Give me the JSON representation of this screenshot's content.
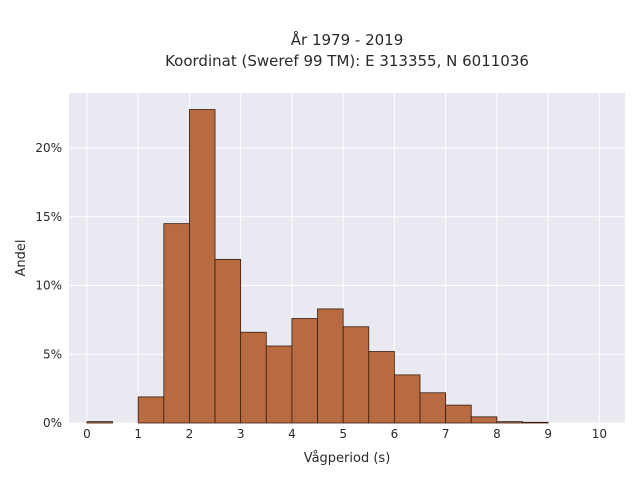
{
  "chart_data": {
    "type": "bar",
    "title": "År 1979 - 2019",
    "subtitle": "Koordinat (Sweref 99 TM): E 313355, N 6011036",
    "xlabel": "Vågperiod (s)",
    "ylabel": "Andel",
    "xlim": [
      -0.35,
      10.5
    ],
    "ylim": [
      0,
      24
    ],
    "x_ticks": [
      0,
      1,
      2,
      3,
      4,
      5,
      6,
      7,
      8,
      9,
      10
    ],
    "y_ticks": [
      0,
      5,
      10,
      15,
      20
    ],
    "y_tick_suffix": "%",
    "bin_width": 0.5,
    "bins": [
      {
        "start": 0.0,
        "value": 0.1
      },
      {
        "start": 0.5,
        "value": 0.0
      },
      {
        "start": 1.0,
        "value": 1.9
      },
      {
        "start": 1.5,
        "value": 14.5
      },
      {
        "start": 2.0,
        "value": 22.8
      },
      {
        "start": 2.5,
        "value": 11.9
      },
      {
        "start": 3.0,
        "value": 6.6
      },
      {
        "start": 3.5,
        "value": 5.6
      },
      {
        "start": 4.0,
        "value": 7.6
      },
      {
        "start": 4.5,
        "value": 8.3
      },
      {
        "start": 5.0,
        "value": 7.0
      },
      {
        "start": 5.5,
        "value": 5.2
      },
      {
        "start": 6.0,
        "value": 3.5
      },
      {
        "start": 6.5,
        "value": 2.2
      },
      {
        "start": 7.0,
        "value": 1.3
      },
      {
        "start": 7.5,
        "value": 0.45
      },
      {
        "start": 8.0,
        "value": 0.1
      },
      {
        "start": 8.5,
        "value": 0.05
      }
    ],
    "bar_color": "#b86a40",
    "bar_edge_color": "#3a1e10",
    "plot_background": "#e9e9f2",
    "grid": true,
    "grid_color": "#ffffff"
  }
}
